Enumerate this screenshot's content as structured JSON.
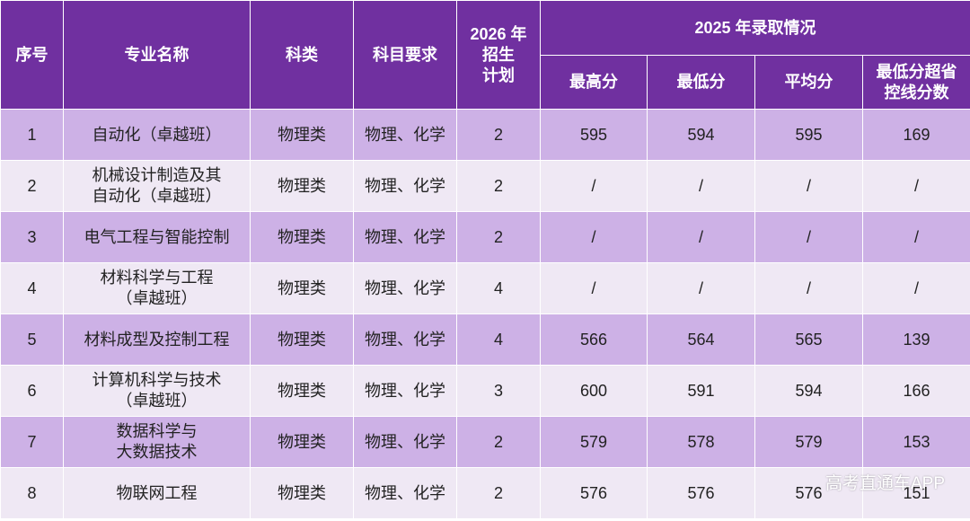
{
  "table": {
    "header": {
      "index": "序号",
      "major": "专业名称",
      "category": "科类",
      "subjects": "科目要求",
      "plan": "2026 年\n招生\n计划",
      "group": "2025 年录取情况",
      "max": "最高分",
      "min": "最低分",
      "avg": "平均分",
      "over": "最低分超省\n控线分数"
    },
    "rows": [
      [
        "1",
        "自动化（卓越班）",
        "物理类",
        "物理、化学",
        "2",
        "595",
        "594",
        "595",
        "169"
      ],
      [
        "2",
        "机械设计制造及其\n自动化（卓越班）",
        "物理类",
        "物理、化学",
        "2",
        "/",
        "/",
        "/",
        "/"
      ],
      [
        "3",
        "电气工程与智能控制",
        "物理类",
        "物理、化学",
        "2",
        "/",
        "/",
        "/",
        "/"
      ],
      [
        "4",
        "材料科学与工程\n（卓越班）",
        "物理类",
        "物理、化学",
        "4",
        "/",
        "/",
        "/",
        "/"
      ],
      [
        "5",
        "材料成型及控制工程",
        "物理类",
        "物理、化学",
        "4",
        "566",
        "564",
        "565",
        "139"
      ],
      [
        "6",
        "计算机科学与技术\n（卓越班）",
        "物理类",
        "物理、化学",
        "3",
        "600",
        "591",
        "594",
        "166"
      ],
      [
        "7",
        "数据科学与\n大数据技术",
        "物理类",
        "物理、化学",
        "2",
        "579",
        "578",
        "579",
        "153"
      ],
      [
        "8",
        "物联网工程",
        "物理类",
        "物理、化学",
        "2",
        "576",
        "576",
        "576",
        "151"
      ]
    ]
  },
  "watermark": "高考直通车APP"
}
